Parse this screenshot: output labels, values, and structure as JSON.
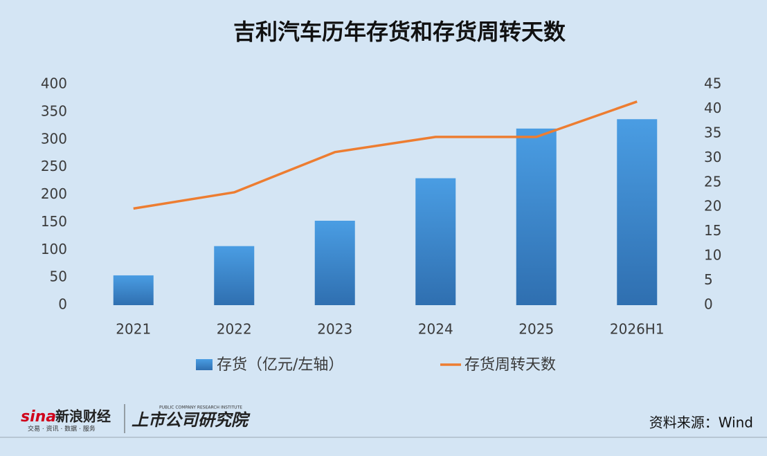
{
  "chart_data": {
    "type": "combo",
    "title": "吉利汽车历年存货和存货周转天数",
    "categories": [
      "2021",
      "2022",
      "2023",
      "2024",
      "2025",
      "2026H1"
    ],
    "series": [
      {
        "name": "存货（亿元/左轴）",
        "type": "bar",
        "color": "#3a87d0",
        "values": [
          54,
          107,
          153,
          230,
          320,
          337
        ]
      },
      {
        "name": "存货周转天数",
        "type": "line",
        "axis": "y2",
        "color": "#ed7d31",
        "values": [
          19.7,
          23,
          31.2,
          34.3,
          34.3,
          41.5
        ]
      }
    ],
    "ylim": [
      0,
      400
    ],
    "yticks": [
      0,
      50,
      100,
      150,
      200,
      250,
      300,
      350,
      400
    ],
    "y2lim": [
      0,
      45
    ],
    "y2ticks": [
      0,
      5,
      10,
      15,
      20,
      25,
      30,
      35,
      40,
      45
    ],
    "grid": false,
    "legend": "bottom"
  },
  "footer": {
    "logo_mark": "sina",
    "logo_name": "新浪财经",
    "logo_slogan": "交易 · 资讯 · 数据 · 服务",
    "institute": "上市公司研究院",
    "institute_en": "PUBLIC COMPANY RESEARCH INSTITUTE",
    "source": "资料来源：Wind"
  }
}
